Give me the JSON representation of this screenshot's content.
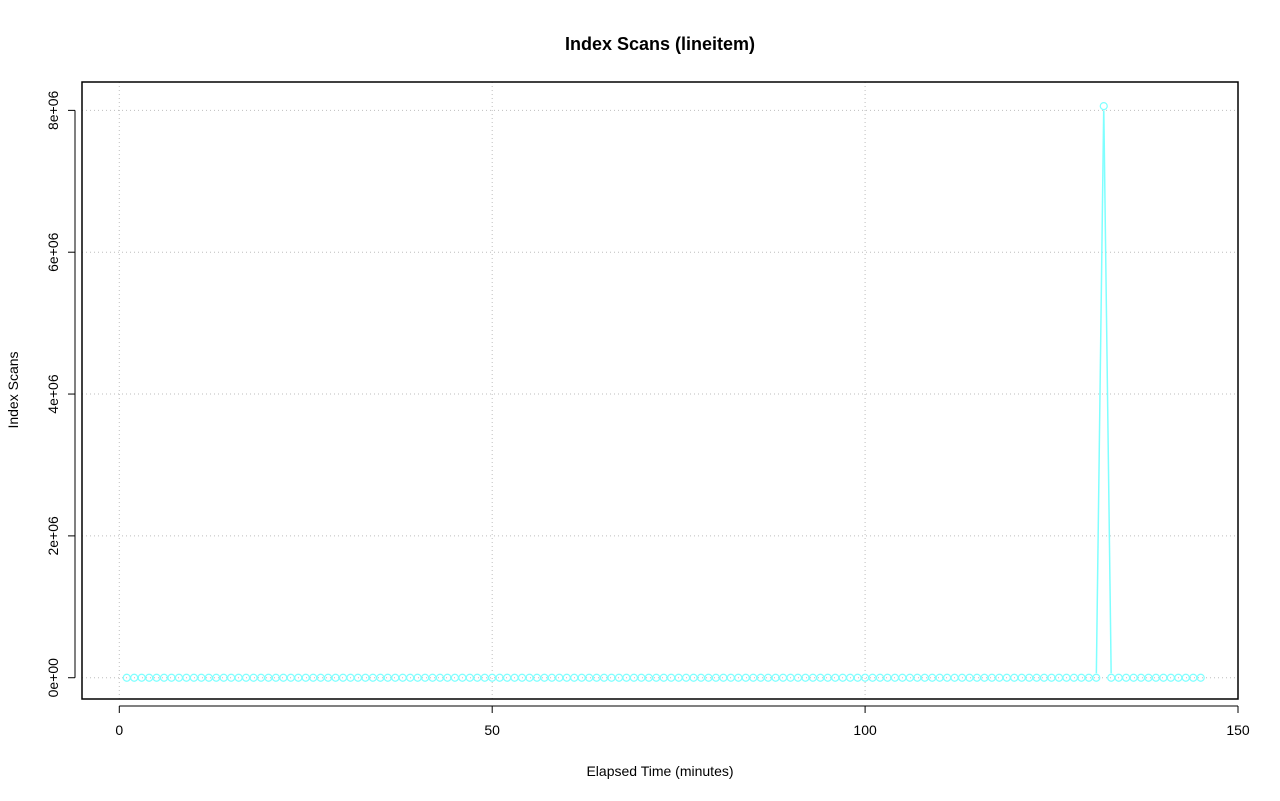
{
  "chart_data": {
    "type": "line",
    "title": "Index Scans (lineitem)",
    "xlabel": "Elapsed Time (minutes)",
    "ylabel": "Index Scans",
    "xlim": [
      -5,
      150
    ],
    "ylim": [
      -300000,
      8400000
    ],
    "x_ticks": [
      0,
      50,
      100,
      150
    ],
    "x_tick_labels": [
      "0",
      "50",
      "100",
      "150"
    ],
    "y_ticks": [
      0,
      2000000,
      4000000,
      6000000,
      8000000
    ],
    "y_tick_labels": [
      "0e+00",
      "2e+06",
      "4e+06",
      "6e+06",
      "8e+06"
    ],
    "grid": true,
    "series": [
      {
        "color": "#7fffff",
        "x_start": 1,
        "x_end": 145,
        "baseline_value": 0,
        "spikes": [
          {
            "x": 132,
            "y": 8060000
          }
        ]
      }
    ]
  }
}
